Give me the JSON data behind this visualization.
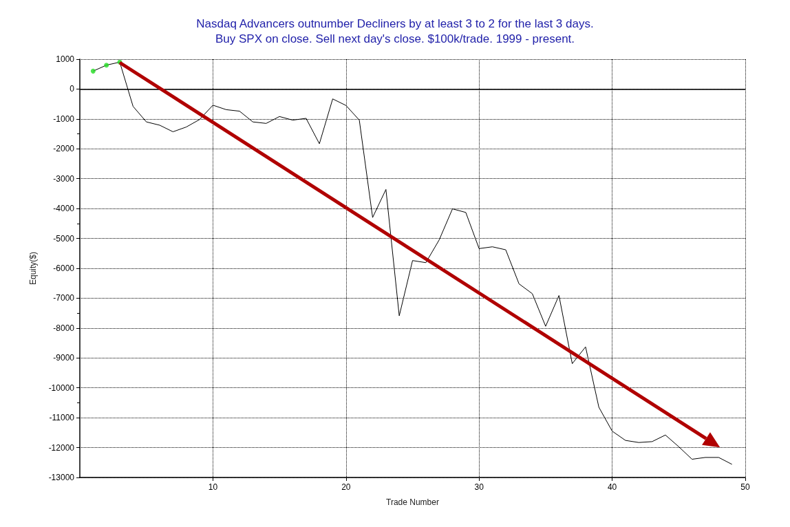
{
  "chart_data": {
    "type": "line",
    "title": "Nasdaq Advancers outnumber Decliners by at least 3 to 2 for the last 3 days.\nBuy SPX on close. Sell next day's close. $100k/trade. 1999 - present.",
    "xlabel": "Trade Number",
    "ylabel": "Equity($)",
    "x": [
      1,
      2,
      3,
      4,
      5,
      6,
      7,
      8,
      9,
      10,
      11,
      12,
      13,
      14,
      15,
      16,
      17,
      18,
      19,
      20,
      21,
      22,
      23,
      24,
      25,
      26,
      27,
      28,
      29,
      30,
      31,
      32,
      33,
      34,
      35,
      36,
      37,
      38,
      39,
      40,
      41,
      42,
      43,
      44,
      45,
      46,
      47,
      48,
      49
    ],
    "series": [
      {
        "color": "#000000",
        "values": [
          600,
          800,
          900,
          -580,
          -1100,
          -1210,
          -1430,
          -1270,
          -1020,
          -540,
          -690,
          -740,
          -1100,
          -1150,
          -920,
          -1040,
          -980,
          -1830,
          -330,
          -550,
          -1040,
          -4300,
          -3360,
          -7590,
          -5740,
          -5810,
          -5050,
          -4010,
          -4130,
          -5340,
          -5280,
          -5380,
          -6520,
          -6850,
          -7940,
          -6910,
          -9190,
          -8630,
          -10650,
          -11450,
          -11760,
          -11830,
          -11800,
          -11580,
          -11970,
          -12390,
          -12330,
          -12330,
          -12560
        ]
      },
      {
        "type": "scatter",
        "color": "#22dd22",
        "marker": "circle",
        "x": [
          1,
          2,
          3
        ],
        "values": [
          600,
          800,
          900
        ]
      }
    ],
    "xlim": [
      0,
      50
    ],
    "xticks": [
      10,
      20,
      30,
      40,
      50
    ],
    "ylim": [
      -13000,
      1000
    ],
    "yticks": [
      -13000,
      -12000,
      -11000,
      -10000,
      -9000,
      -8000,
      -7000,
      -6000,
      -5000,
      -4000,
      -3000,
      -2000,
      -1000,
      0,
      1000
    ],
    "ref_lines": [
      {
        "axis": "y",
        "value": 0,
        "color": "#000000",
        "line_style": "solid"
      }
    ],
    "grid": true
  }
}
